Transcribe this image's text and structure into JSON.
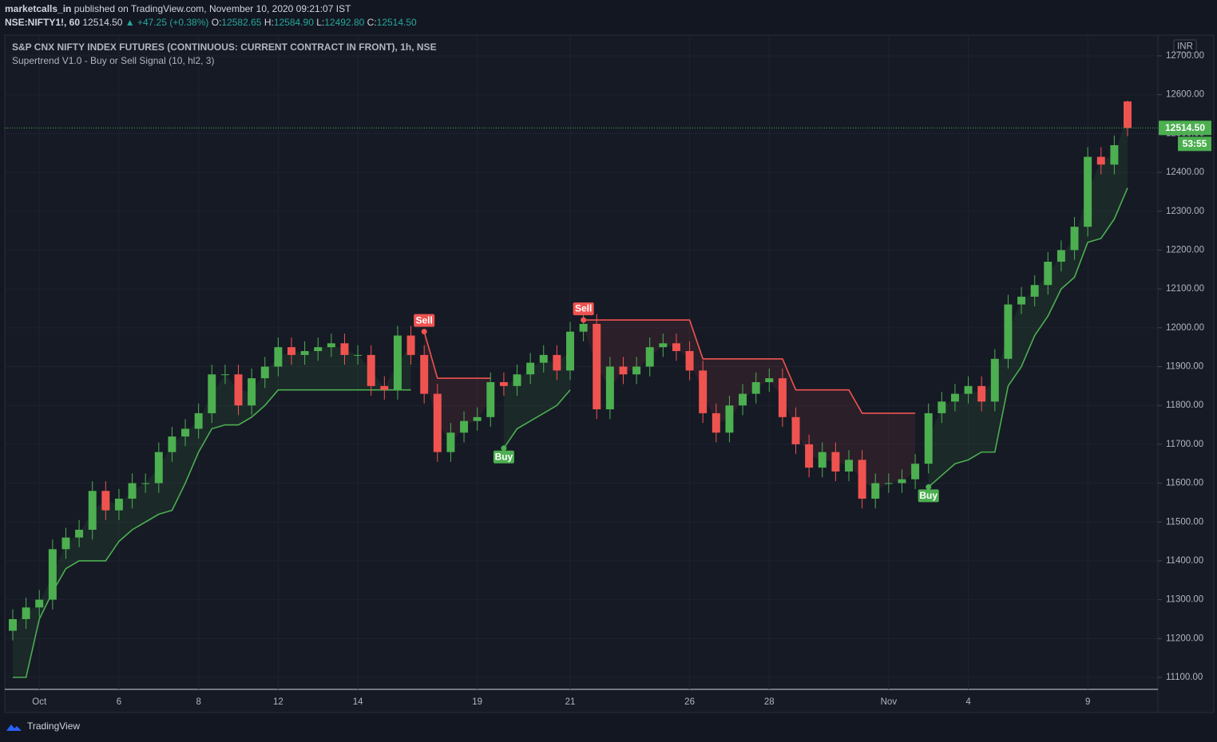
{
  "header": {
    "publisher": "marketcalls_in",
    "published": "published on TradingView.com, November 10, 2020 09:21:07 IST",
    "symbol": "NSE:NIFTY1!, 60",
    "price": "12514.50",
    "change": "▲ +47.25 (+0.38%)",
    "o_label": "O:",
    "o": "12582.65",
    "h_label": "H:",
    "h": "12584.90",
    "l_label": "L:",
    "l": "12492.80",
    "c_label": "C:",
    "c": "12514.50"
  },
  "footer": {
    "brand": "TradingView"
  },
  "chart_data": {
    "type": "candlestick",
    "title": "S&P CNX NIFTY INDEX FUTURES (CONTINUOUS: CURRENT CONTRACT IN FRONT), 1h, NSE",
    "subtitle": "Supertrend V1.0 - Buy or Sell Signal (10, hl2, 3)",
    "currency": "INR",
    "categories": [
      null,
      null,
      "Oct",
      null,
      null,
      null,
      null,
      null,
      "6",
      null,
      null,
      null,
      null,
      null,
      "8",
      null,
      null,
      null,
      null,
      null,
      "12",
      null,
      null,
      null,
      null,
      null,
      "14",
      null,
      null,
      null,
      null,
      null,
      null,
      null,
      null,
      "19",
      null,
      null,
      null,
      null,
      null,
      null,
      "21",
      null,
      null,
      null,
      null,
      null,
      null,
      null,
      null,
      "26",
      null,
      null,
      null,
      null,
      null,
      "28",
      null,
      null,
      null,
      null,
      null,
      null,
      null,
      null,
      "Nov",
      null,
      null,
      null,
      null,
      null,
      "4",
      null,
      null,
      null,
      null,
      null,
      null,
      null,
      null,
      "9",
      null,
      null,
      null
    ],
    "open": [
      11220,
      11250,
      11280,
      11300,
      11430,
      11460,
      11480,
      11580,
      11530,
      11560,
      11600,
      11600,
      11680,
      11720,
      11740,
      11780,
      11880,
      11880,
      11800,
      11870,
      11900,
      11950,
      11930,
      11940,
      11950,
      11960,
      11930,
      11930,
      11850,
      11840,
      11980,
      11930,
      11830,
      11680,
      11730,
      11760,
      11770,
      11860,
      11850,
      11880,
      11910,
      11930,
      11890,
      11990,
      12010,
      11790,
      11900,
      11880,
      11900,
      11950,
      11960,
      11940,
      11890,
      11780,
      11730,
      11800,
      11830,
      11860,
      11870,
      11770,
      11700,
      11640,
      11680,
      11630,
      11660,
      11560,
      11600,
      11600,
      11610,
      11650,
      11780,
      11810,
      11830,
      11850,
      11810,
      11920,
      12060,
      12080,
      12110,
      12170,
      12200,
      12260,
      12440,
      12420,
      12582.65
    ],
    "high": [
      11275,
      11305,
      11325,
      11455,
      11485,
      11505,
      11605,
      11605,
      11585,
      11625,
      11625,
      11705,
      11745,
      11765,
      11805,
      11905,
      11905,
      11905,
      11895,
      11925,
      11975,
      11975,
      11965,
      11975,
      11985,
      11985,
      11955,
      11955,
      11875,
      12005,
      12005,
      11955,
      11855,
      11755,
      11785,
      11795,
      11885,
      11885,
      11905,
      11935,
      11955,
      11955,
      12015,
      12035,
      12035,
      11925,
      11925,
      11925,
      11975,
      11985,
      11985,
      11965,
      11915,
      11805,
      11825,
      11855,
      11885,
      11895,
      11895,
      11795,
      11725,
      11705,
      11705,
      11685,
      11685,
      11625,
      11625,
      11635,
      11675,
      11805,
      11835,
      11855,
      11875,
      11875,
      11945,
      12085,
      12105,
      12135,
      12195,
      12225,
      12285,
      12465,
      12465,
      12495,
      12584.9
    ],
    "low": [
      11195,
      11225,
      11255,
      11275,
      11405,
      11435,
      11455,
      11505,
      11505,
      11535,
      11575,
      11575,
      11655,
      11695,
      11715,
      11755,
      11855,
      11775,
      11775,
      11845,
      11875,
      11905,
      11905,
      11915,
      11925,
      11905,
      11905,
      11825,
      11815,
      11815,
      11905,
      11805,
      11655,
      11655,
      11705,
      11735,
      11745,
      11825,
      11825,
      11855,
      11885,
      11865,
      11865,
      11965,
      11765,
      11765,
      11855,
      11855,
      11875,
      11925,
      11915,
      11865,
      11755,
      11705,
      11705,
      11775,
      11805,
      11835,
      11745,
      11675,
      11615,
      11615,
      11605,
      11605,
      11535,
      11535,
      11575,
      11575,
      11585,
      11625,
      11755,
      11785,
      11805,
      11785,
      11785,
      11895,
      12035,
      12055,
      12085,
      12145,
      12175,
      12235,
      12395,
      12395,
      12492.8
    ],
    "close": [
      11250,
      11280,
      11300,
      11430,
      11460,
      11480,
      11580,
      11530,
      11560,
      11600,
      11600,
      11680,
      11720,
      11740,
      11780,
      11880,
      11880,
      11800,
      11870,
      11900,
      11950,
      11930,
      11940,
      11950,
      11960,
      11930,
      11930,
      11850,
      11840,
      11980,
      11930,
      11830,
      11680,
      11730,
      11760,
      11770,
      11860,
      11850,
      11880,
      11910,
      11930,
      11890,
      11990,
      12010,
      11790,
      11900,
      11880,
      11900,
      11950,
      11960,
      11940,
      11890,
      11780,
      11730,
      11800,
      11830,
      11860,
      11870,
      11770,
      11700,
      11640,
      11680,
      11630,
      11660,
      11560,
      11600,
      11600,
      11610,
      11650,
      11780,
      11810,
      11830,
      11850,
      11810,
      11920,
      12060,
      12080,
      12110,
      12170,
      12200,
      12260,
      12440,
      12420,
      12470,
      12514.5
    ],
    "up_color": "#4caf50",
    "down_color": "#ef5350",
    "series": [
      {
        "color": "#4caf50",
        "values": [
          11100,
          11100,
          11250,
          11320,
          11380,
          11400,
          11400,
          11400,
          11450,
          11480,
          11500,
          11520,
          11530,
          11600,
          11680,
          11740,
          11750,
          11750,
          11770,
          11800,
          11840,
          11840,
          11840,
          11840,
          11840,
          11840,
          11840,
          11840,
          11840,
          11840,
          11840,
          null,
          null,
          null,
          null,
          null,
          null,
          11690,
          11740,
          11760,
          11780,
          11800,
          11840,
          null,
          null,
          null,
          null,
          null,
          null,
          null,
          null,
          null,
          null,
          null,
          null,
          null,
          null,
          null,
          null,
          null,
          null,
          null,
          null,
          null,
          null,
          null,
          null,
          null,
          null,
          11590,
          11620,
          11650,
          11660,
          11680,
          11680,
          11850,
          11900,
          11980,
          12030,
          12100,
          12130,
          12220,
          12230,
          12280,
          12360
        ]
      },
      {
        "color": "#ef5350",
        "values": [
          null,
          null,
          null,
          null,
          null,
          null,
          null,
          null,
          null,
          null,
          null,
          null,
          null,
          null,
          null,
          null,
          null,
          null,
          null,
          null,
          null,
          null,
          null,
          null,
          null,
          null,
          null,
          null,
          null,
          null,
          null,
          11990,
          11870,
          11870,
          11870,
          11870,
          11870,
          null,
          null,
          null,
          null,
          null,
          null,
          12020,
          12020,
          12020,
          12020,
          12020,
          12020,
          12020,
          12020,
          12020,
          11920,
          11920,
          11920,
          11920,
          11920,
          11920,
          11920,
          11840,
          11840,
          11840,
          11840,
          11840,
          11780,
          11780,
          11780,
          11780,
          11780,
          null,
          null,
          null,
          null,
          null,
          null,
          null,
          null,
          null,
          null,
          null,
          null,
          null,
          null,
          null,
          null
        ]
      }
    ],
    "signals": [
      null,
      null,
      null,
      null,
      null,
      null,
      null,
      null,
      null,
      null,
      null,
      null,
      null,
      null,
      null,
      null,
      null,
      null,
      null,
      null,
      null,
      null,
      null,
      null,
      null,
      null,
      null,
      null,
      null,
      null,
      null,
      "Sell",
      null,
      null,
      null,
      null,
      null,
      "Buy",
      null,
      null,
      null,
      null,
      null,
      "Sell",
      null,
      null,
      null,
      null,
      null,
      null,
      null,
      null,
      null,
      null,
      null,
      null,
      null,
      null,
      null,
      null,
      null,
      null,
      null,
      null,
      null,
      null,
      null,
      null,
      null,
      "Buy",
      null,
      null,
      null,
      null,
      null,
      null,
      null,
      null,
      null,
      null,
      null,
      null,
      null,
      null,
      null
    ],
    "last_price": {
      "value": 12514.5,
      "label": "12514.50"
    },
    "countdown": "53:55",
    "ylim": [
      11060,
      12760
    ],
    "yticks": [
      {
        "value": 11100,
        "label": "11100.00"
      },
      {
        "value": 11200,
        "label": "11200.00"
      },
      {
        "value": 11300,
        "label": "11300.00"
      },
      {
        "value": 11400,
        "label": "11400.00"
      },
      {
        "value": 11500,
        "label": "11500.00"
      },
      {
        "value": 11600,
        "label": "11600.00"
      },
      {
        "value": 11700,
        "label": "11700.00"
      },
      {
        "value": 11800,
        "label": "11800.00"
      },
      {
        "value": 11900,
        "label": "11900.00"
      },
      {
        "value": 12000,
        "label": "12000.00"
      },
      {
        "value": 12100,
        "label": "12100.00"
      },
      {
        "value": 12200,
        "label": "12200.00"
      },
      {
        "value": 12300,
        "label": "12300.00"
      },
      {
        "value": 12400,
        "label": "12400.00"
      },
      {
        "value": 12500,
        "label": "12500.00"
      },
      {
        "value": 12600,
        "label": "12600.00"
      },
      {
        "value": 12700,
        "label": "12700.00"
      }
    ],
    "grid": true
  }
}
